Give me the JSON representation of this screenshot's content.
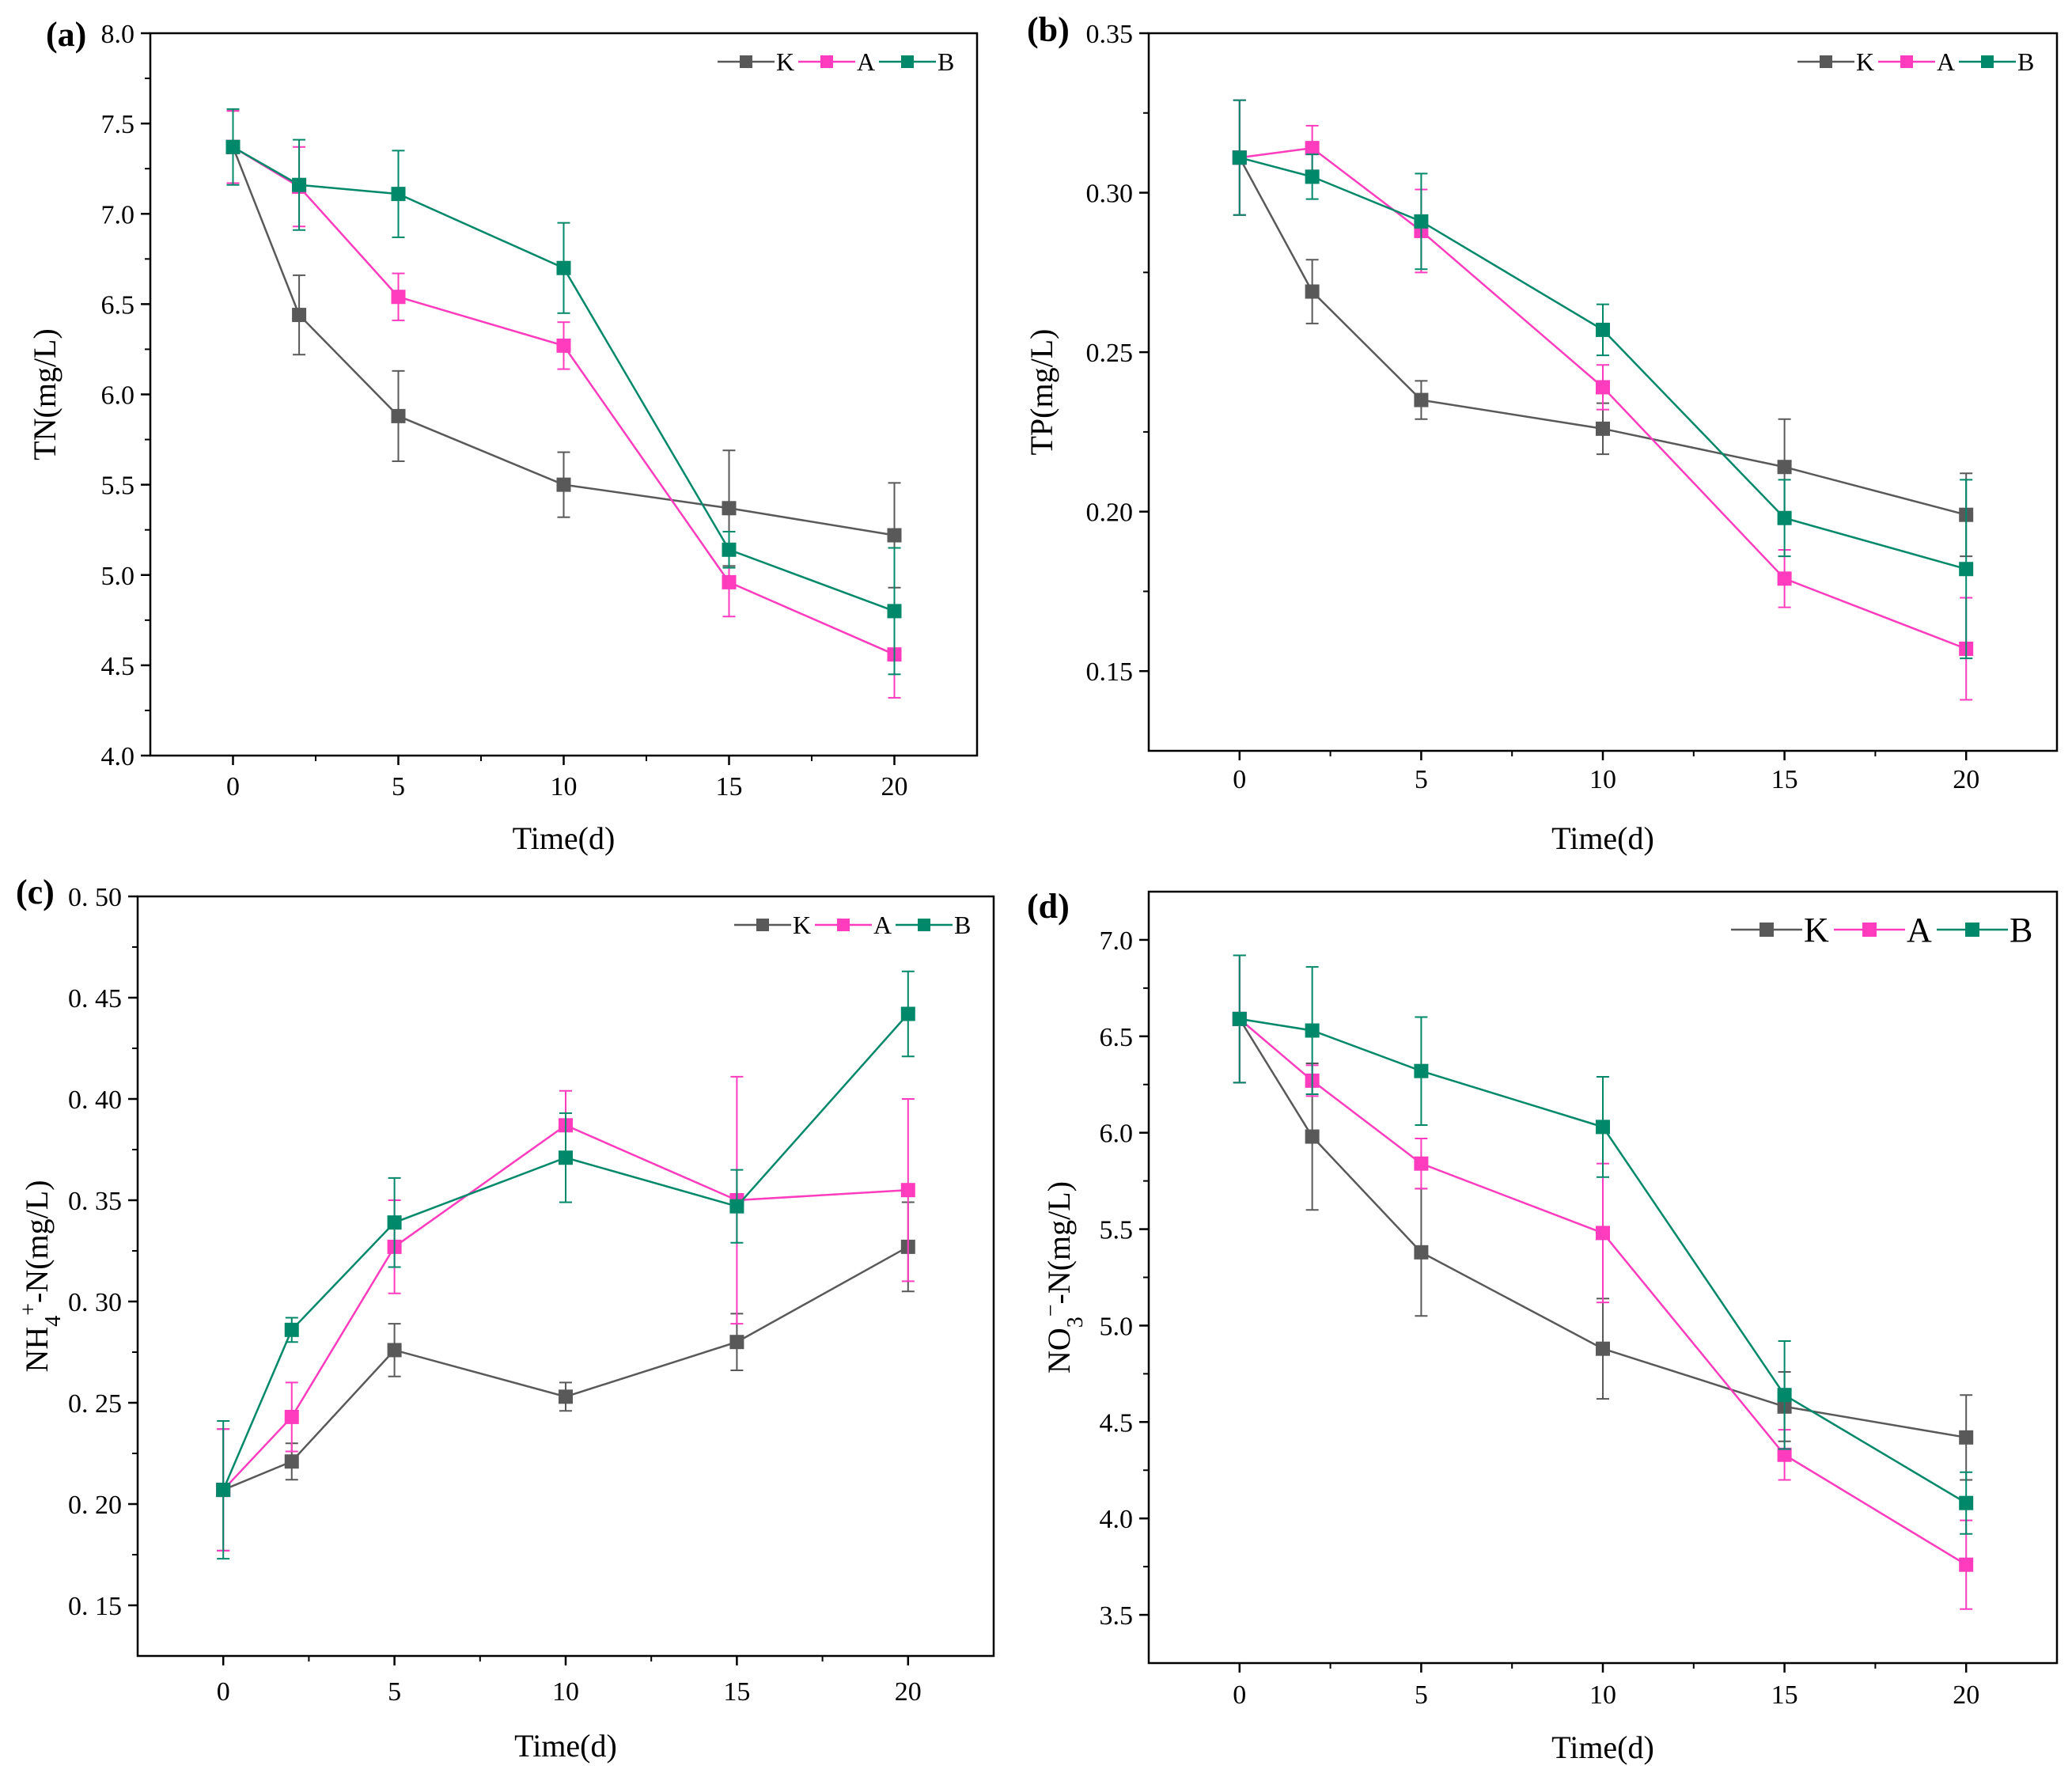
{
  "figure": {
    "colors": {
      "K": "#595959",
      "A": "#ff3cbe",
      "B": "#00886a",
      "axis": "#000000"
    }
  },
  "chart_data": [
    {
      "type": "line",
      "panel_label": "(a)",
      "title": "",
      "xlabel": "Time(d)",
      "ylabel": "TN(mg/L)",
      "ylabel_parts": [
        {
          "t": "TN(mg/L)"
        }
      ],
      "xlim": [
        -2.5,
        22.5
      ],
      "ylim": [
        4.0,
        8.0
      ],
      "xticks": [
        0,
        5,
        10,
        15,
        20
      ],
      "xtick_labels": [
        "0",
        "5",
        "10",
        "15",
        "20"
      ],
      "yticks": [
        4.0,
        4.5,
        5.0,
        5.5,
        6.0,
        6.5,
        7.0,
        7.5,
        8.0
      ],
      "ytick_labels": [
        "4.0",
        "4.5",
        "5.0",
        "5.5",
        "6.0",
        "6.5",
        "7.0",
        "7.5",
        "8.0"
      ],
      "legend_labels": [
        "K",
        "A",
        "B"
      ],
      "legend_position": "top-right",
      "legend_size": "small",
      "x": [
        0,
        2,
        5,
        10,
        15,
        20
      ],
      "series": [
        {
          "name": "K",
          "values": [
            7.37,
            6.44,
            5.88,
            5.5,
            5.37,
            5.22
          ],
          "errors": [
            0.2,
            0.22,
            0.25,
            0.18,
            0.32,
            0.29
          ]
        },
        {
          "name": "A",
          "values": [
            7.37,
            7.15,
            6.54,
            6.27,
            4.96,
            4.56
          ],
          "errors": [
            0.2,
            0.22,
            0.13,
            0.13,
            0.19,
            0.24
          ]
        },
        {
          "name": "B",
          "values": [
            7.37,
            7.16,
            7.11,
            6.7,
            5.14,
            4.8
          ],
          "errors": [
            0.21,
            0.25,
            0.24,
            0.25,
            0.1,
            0.35
          ]
        }
      ]
    },
    {
      "type": "line",
      "panel_label": "(b)",
      "title": "",
      "xlabel": "Time(d)",
      "ylabel": "TP(mg/L)",
      "ylabel_parts": [
        {
          "t": "TP(mg/L)"
        }
      ],
      "xlim": [
        -2.5,
        22.5
      ],
      "ylim": [
        0.125,
        0.35
      ],
      "xticks": [
        0,
        5,
        10,
        15,
        20
      ],
      "xtick_labels": [
        "0",
        "5",
        "10",
        "15",
        "20"
      ],
      "yticks": [
        0.15,
        0.2,
        0.25,
        0.3,
        0.35
      ],
      "ytick_labels": [
        "0.15",
        "0.20",
        "0.25",
        "0.30",
        "0.35"
      ],
      "legend_labels": [
        "K",
        "A",
        "B"
      ],
      "legend_position": "top-right",
      "legend_size": "small",
      "x": [
        0,
        2,
        5,
        10,
        15,
        20
      ],
      "series": [
        {
          "name": "K",
          "values": [
            0.311,
            0.269,
            0.235,
            0.226,
            0.214,
            0.199
          ],
          "errors": [
            0.018,
            0.01,
            0.006,
            0.008,
            0.015,
            0.013
          ]
        },
        {
          "name": "A",
          "values": [
            0.311,
            0.314,
            0.288,
            0.239,
            0.179,
            0.157
          ],
          "errors": [
            0.018,
            0.007,
            0.013,
            0.007,
            0.009,
            0.016
          ]
        },
        {
          "name": "B",
          "values": [
            0.311,
            0.305,
            0.291,
            0.257,
            0.198,
            0.182
          ],
          "errors": [
            0.018,
            0.007,
            0.015,
            0.008,
            0.012,
            0.028
          ]
        }
      ]
    },
    {
      "type": "line",
      "panel_label": "(c)",
      "title": "",
      "xlabel": "Time(d)",
      "ylabel": "NH4+-N(mg/L)",
      "ylabel_parts": [
        {
          "t": "NH"
        },
        {
          "t": "4",
          "sub": true
        },
        {
          "t": "+",
          "sup": true
        },
        {
          "t": "-N(mg/L)"
        }
      ],
      "xlim": [
        -2.5,
        22.5
      ],
      "ylim": [
        0.125,
        0.5
      ],
      "xticks": [
        0,
        5,
        10,
        15,
        20
      ],
      "xtick_labels": [
        "0",
        "5",
        "10",
        "15",
        "20"
      ],
      "yticks": [
        0.15,
        0.2,
        0.25,
        0.3,
        0.35,
        0.4,
        0.45,
        0.5
      ],
      "ytick_labels": [
        "0. 15",
        "0. 20",
        "0. 25",
        "0. 30",
        "0. 35",
        "0. 40",
        "0. 45",
        "0. 50"
      ],
      "legend_labels": [
        "K",
        "A",
        "B"
      ],
      "legend_position": "top-right",
      "legend_size": "small",
      "x": [
        0,
        2,
        5,
        10,
        15,
        20
      ],
      "series": [
        {
          "name": "K",
          "values": [
            0.207,
            0.221,
            0.276,
            0.253,
            0.28,
            0.327
          ],
          "errors": [
            0.03,
            0.009,
            0.013,
            0.007,
            0.014,
            0.022
          ]
        },
        {
          "name": "A",
          "values": [
            0.207,
            0.243,
            0.327,
            0.387,
            0.35,
            0.355
          ],
          "errors": [
            0.03,
            0.017,
            0.023,
            0.017,
            0.061,
            0.045
          ]
        },
        {
          "name": "B",
          "values": [
            0.207,
            0.286,
            0.339,
            0.371,
            0.347,
            0.442
          ],
          "errors": [
            0.034,
            0.006,
            0.022,
            0.022,
            0.018,
            0.021
          ]
        }
      ]
    },
    {
      "type": "line",
      "panel_label": "(d)",
      "title": "",
      "xlabel": "Time(d)",
      "ylabel": "NO3−-N(mg/L)",
      "ylabel_parts": [
        {
          "t": "NO"
        },
        {
          "t": "3",
          "sub": true
        },
        {
          "t": "−",
          "sup": true
        },
        {
          "t": "-N(mg/L)"
        }
      ],
      "xlim": [
        -2.5,
        22.5
      ],
      "ylim": [
        3.25,
        7.25
      ],
      "xticks": [
        0,
        5,
        10,
        15,
        20
      ],
      "xtick_labels": [
        "0",
        "5",
        "10",
        "15",
        "20"
      ],
      "yticks": [
        3.5,
        4.0,
        4.5,
        5.0,
        5.5,
        6.0,
        6.5,
        7.0
      ],
      "ytick_labels": [
        "3.5",
        "4.0",
        "4.5",
        "5.0",
        "5.5",
        "6.0",
        "6.5",
        "7.0"
      ],
      "legend_labels": [
        "K",
        "A",
        "B"
      ],
      "legend_position": "top-right",
      "legend_size": "large",
      "x": [
        0,
        2,
        5,
        10,
        15,
        20
      ],
      "series": [
        {
          "name": "K",
          "values": [
            6.59,
            5.98,
            5.38,
            4.88,
            4.58,
            4.42
          ],
          "errors": [
            0.33,
            0.38,
            0.33,
            0.26,
            0.18,
            0.22
          ]
        },
        {
          "name": "A",
          "values": [
            6.59,
            6.27,
            5.84,
            5.48,
            4.33,
            3.76
          ],
          "errors": [
            0.33,
            0.08,
            0.13,
            0.36,
            0.13,
            0.23
          ]
        },
        {
          "name": "B",
          "values": [
            6.59,
            6.53,
            6.32,
            6.03,
            4.64,
            4.08
          ],
          "errors": [
            0.33,
            0.33,
            0.28,
            0.26,
            0.28,
            0.16
          ]
        }
      ]
    }
  ]
}
